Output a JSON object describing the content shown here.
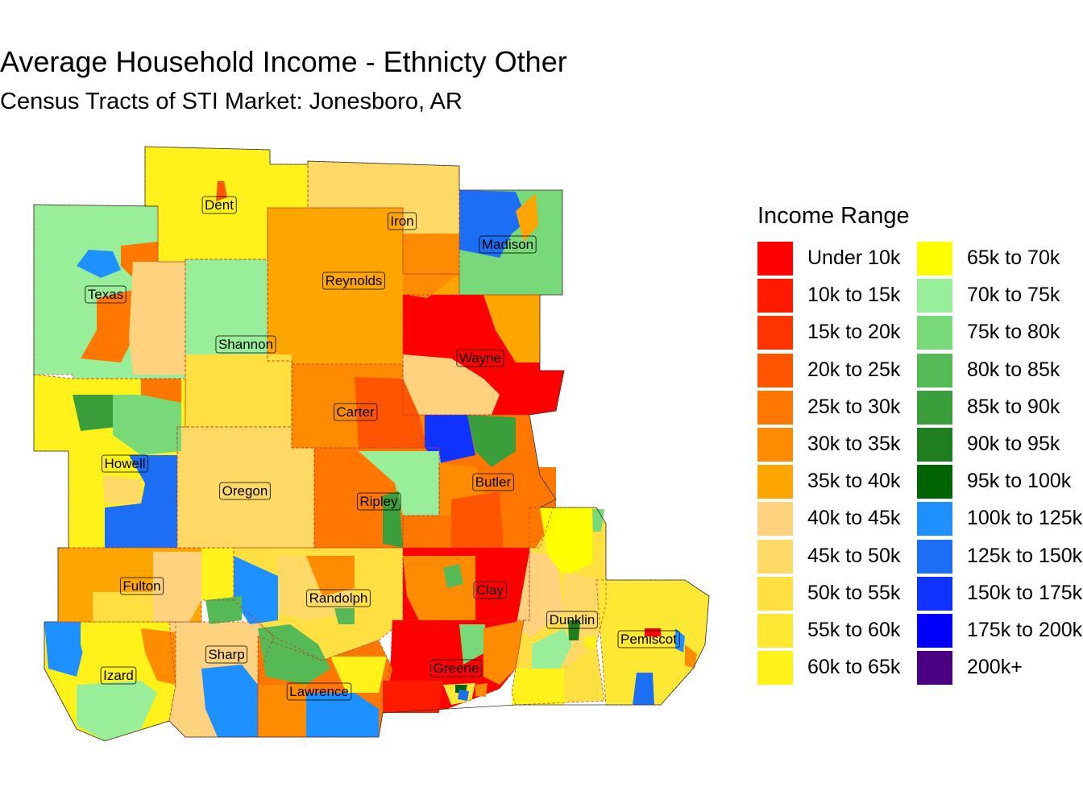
{
  "title": "Average Household Income - Ethnicty Other",
  "subtitle": "Census Tracts of STI Market: Jonesboro, AR",
  "legend": {
    "title": "Income Range",
    "items": [
      {
        "label": "Under 10k",
        "color": "#FF0000"
      },
      {
        "label": "10k to 15k",
        "color": "#FF1A00"
      },
      {
        "label": "15k to 20k",
        "color": "#FF3300"
      },
      {
        "label": "20k to 25k",
        "color": "#FF5500"
      },
      {
        "label": "25k to 30k",
        "color": "#FF7700"
      },
      {
        "label": "30k to 35k",
        "color": "#FF8C00"
      },
      {
        "label": "35k to 40k",
        "color": "#FFA500"
      },
      {
        "label": "40k to 45k",
        "color": "#FFD27F"
      },
      {
        "label": "45k to 50k",
        "color": "#FFD966"
      },
      {
        "label": "50k to 55k",
        "color": "#FFE040"
      },
      {
        "label": "55k to 60k",
        "color": "#FFE833"
      },
      {
        "label": "60k to 65k",
        "color": "#FFF21A"
      },
      {
        "label": "65k to 70k",
        "color": "#FFFF00"
      },
      {
        "label": "70k to 75k",
        "color": "#99EE99"
      },
      {
        "label": "75k to 80k",
        "color": "#77D977"
      },
      {
        "label": "80k to 85k",
        "color": "#55B955"
      },
      {
        "label": "85k to 90k",
        "color": "#3A9E3A"
      },
      {
        "label": "90k to 95k",
        "color": "#1F7F1F"
      },
      {
        "label": "95k to 100k",
        "color": "#006400"
      },
      {
        "label": "100k to 125k",
        "color": "#1E90FF"
      },
      {
        "label": "125k to 150k",
        "color": "#1C6EF5"
      },
      {
        "label": "150k to 175k",
        "color": "#1033FF"
      },
      {
        "label": "175k to 200k",
        "color": "#0000FF"
      },
      {
        "label": "200k+",
        "color": "#4B0082"
      }
    ]
  },
  "counties": [
    {
      "name": "Dent",
      "range": "60k to 65k"
    },
    {
      "name": "Iron",
      "range": "45k to 50k"
    },
    {
      "name": "Madison",
      "range": "75k to 80k"
    },
    {
      "name": "Texas",
      "range": "70k to 75k"
    },
    {
      "name": "Reynolds",
      "range": "35k to 40k"
    },
    {
      "name": "Shannon",
      "range": "70k to 75k"
    },
    {
      "name": "Wayne",
      "range": "Under 10k"
    },
    {
      "name": "Carter",
      "range": "30k to 35k"
    },
    {
      "name": "Howell",
      "range": "60k to 65k"
    },
    {
      "name": "Oregon",
      "range": "45k to 50k"
    },
    {
      "name": "Ripley",
      "range": "25k to 30k"
    },
    {
      "name": "Butler",
      "range": "25k to 30k"
    },
    {
      "name": "Fulton",
      "range": "35k to 40k"
    },
    {
      "name": "Randolph",
      "range": "50k to 55k"
    },
    {
      "name": "Clay",
      "range": "Under 10k"
    },
    {
      "name": "Dunklin",
      "range": "50k to 55k"
    },
    {
      "name": "Pemiscot",
      "range": "55k to 60k"
    },
    {
      "name": "Izard",
      "range": "60k to 65k"
    },
    {
      "name": "Sharp",
      "range": "40k to 45k"
    },
    {
      "name": "Greene",
      "range": "Under 10k"
    },
    {
      "name": "Lawrence",
      "range": "25k to 30k"
    }
  ]
}
